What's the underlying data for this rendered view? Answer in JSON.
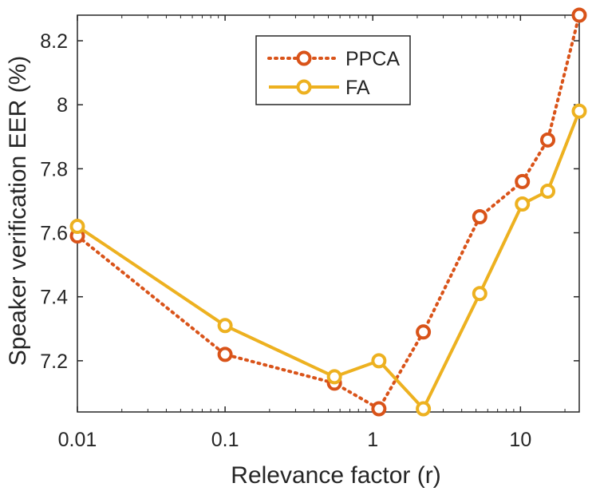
{
  "chart_data": {
    "type": "line",
    "xlabel": "Relevance factor (r)",
    "ylabel": "Speaker verification EER (%)",
    "x_scale": "log",
    "xlim": [
      0.01,
      25
    ],
    "ylim": [
      7.04,
      8.28
    ],
    "x_ticks": [
      0.01,
      0.1,
      1,
      10
    ],
    "x_tick_labels": [
      "0.01",
      "0.1",
      "1",
      "10"
    ],
    "y_ticks": [
      7.2,
      7.4,
      7.6,
      7.8,
      8.0,
      8.2
    ],
    "y_tick_labels": [
      "7.2",
      "7.4",
      "7.6",
      "7.8",
      "8",
      "8.2"
    ],
    "grid": false,
    "legend_position": "top-center",
    "x": [
      0.01,
      0.1,
      0.55,
      1.1,
      2.2,
      5.3,
      10.3,
      15.3,
      25
    ],
    "series": [
      {
        "name": "PPCA",
        "color": "#D95319",
        "line_style": "dotted",
        "marker": "circle",
        "values": [
          7.59,
          7.22,
          7.13,
          7.05,
          7.29,
          7.65,
          7.76,
          7.89,
          8.28
        ]
      },
      {
        "name": "FA",
        "color": "#EDB120",
        "line_style": "solid",
        "marker": "circle",
        "values": [
          7.62,
          7.31,
          7.15,
          7.2,
          7.05,
          7.41,
          7.69,
          7.73,
          7.98
        ]
      }
    ]
  }
}
